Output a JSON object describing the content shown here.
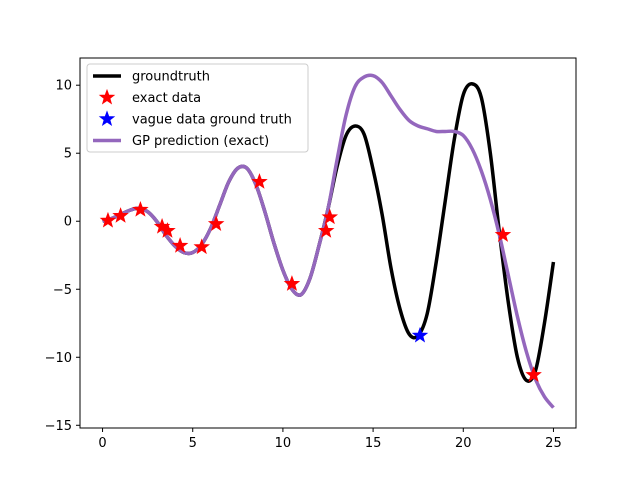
{
  "chart_data": {
    "type": "line",
    "title": "",
    "xlabel": "",
    "ylabel": "",
    "xlim": [
      -1.25,
      26.25
    ],
    "ylim": [
      -15.2,
      12.0
    ],
    "xticks": [
      0,
      5,
      10,
      15,
      20,
      25
    ],
    "yticks": [
      -15,
      -10,
      -5,
      0,
      5,
      10
    ],
    "grid": false,
    "legend_position": "top-left",
    "legend": [
      {
        "label": "groundtruth",
        "kind": "line",
        "color": "#000000"
      },
      {
        "label": "exact data",
        "kind": "star",
        "color": "#ff0000"
      },
      {
        "label": "vague data ground truth",
        "kind": "star",
        "color": "#0000ff"
      },
      {
        "label": "GP prediction (exact)",
        "kind": "line",
        "color": "#9467bd"
      }
    ],
    "series": [
      {
        "name": "groundtruth",
        "color": "#000000",
        "x": [
          0,
          0.5,
          1,
          1.5,
          2,
          2.5,
          3,
          3.5,
          4,
          4.5,
          5,
          5.5,
          6,
          6.5,
          7,
          7.5,
          8,
          8.5,
          9,
          9.5,
          10,
          10.5,
          11,
          11.5,
          12,
          12.5,
          13,
          13.5,
          14,
          14.5,
          15,
          15.5,
          16,
          16.5,
          17,
          17.5,
          18,
          18.5,
          19,
          19.5,
          20,
          20.5,
          21,
          21.5,
          22,
          22.5,
          23,
          23.5,
          24,
          24.5,
          25
        ],
        "y": [
          0,
          0.2,
          0.5,
          0.8,
          0.95,
          0.7,
          0,
          -1.0,
          -1.8,
          -2.3,
          -2.3,
          -1.7,
          -0.5,
          1.2,
          2.9,
          3.9,
          3.9,
          2.7,
          0.7,
          -1.6,
          -3.6,
          -5.0,
          -5.4,
          -4.2,
          -1.8,
          0.9,
          4.0,
          6.3,
          7.0,
          6.4,
          3.8,
          0.5,
          -3.5,
          -6.5,
          -8.3,
          -8.4,
          -6.8,
          -3.0,
          1.5,
          6.0,
          9.3,
          10.1,
          9.1,
          5.0,
          -0.8,
          -6.0,
          -10.0,
          -11.7,
          -11.0,
          -7.5,
          -3.0
        ]
      },
      {
        "name": "GP prediction (exact)",
        "color": "#9467bd",
        "x": [
          0,
          0.5,
          1,
          1.5,
          2,
          2.5,
          3,
          3.5,
          4,
          4.5,
          5,
          5.5,
          6,
          6.5,
          7,
          7.5,
          8,
          8.5,
          9,
          9.5,
          10,
          10.5,
          11,
          11.5,
          12,
          12.5,
          13,
          13.5,
          14,
          14.5,
          15,
          15.5,
          16,
          16.5,
          17,
          17.5,
          18,
          18.5,
          19,
          19.5,
          20,
          20.5,
          21,
          21.5,
          22,
          22.5,
          23,
          23.5,
          24,
          24.5,
          25
        ],
        "y": [
          0,
          0.2,
          0.5,
          0.8,
          0.95,
          0.7,
          0,
          -1.0,
          -1.8,
          -2.3,
          -2.3,
          -1.7,
          -0.5,
          1.2,
          2.9,
          3.9,
          3.9,
          2.7,
          0.7,
          -1.6,
          -3.6,
          -5.0,
          -5.4,
          -4.2,
          -1.8,
          0.9,
          4.5,
          7.8,
          9.9,
          10.6,
          10.7,
          10.2,
          9.2,
          8.2,
          7.4,
          7.0,
          6.8,
          6.6,
          6.6,
          6.6,
          6.3,
          5.3,
          3.7,
          1.6,
          -1.0,
          -4.0,
          -7.0,
          -9.6,
          -11.6,
          -12.9,
          -13.7
        ]
      }
    ],
    "scatter": [
      {
        "name": "exact data",
        "color": "#ff0000",
        "points": [
          [
            0.3,
            0.05
          ],
          [
            1.0,
            0.4
          ],
          [
            2.1,
            0.85
          ],
          [
            3.3,
            -0.4
          ],
          [
            3.6,
            -0.7
          ],
          [
            4.3,
            -1.8
          ],
          [
            5.5,
            -1.9
          ],
          [
            6.3,
            -0.2
          ],
          [
            8.7,
            2.9
          ],
          [
            10.5,
            -4.6
          ],
          [
            12.4,
            -0.7
          ],
          [
            12.6,
            0.3
          ],
          [
            22.2,
            -1.0
          ],
          [
            23.9,
            -11.3
          ]
        ]
      },
      {
        "name": "vague data ground truth",
        "color": "#0000ff",
        "points": [
          [
            17.6,
            -8.4
          ]
        ]
      }
    ]
  }
}
